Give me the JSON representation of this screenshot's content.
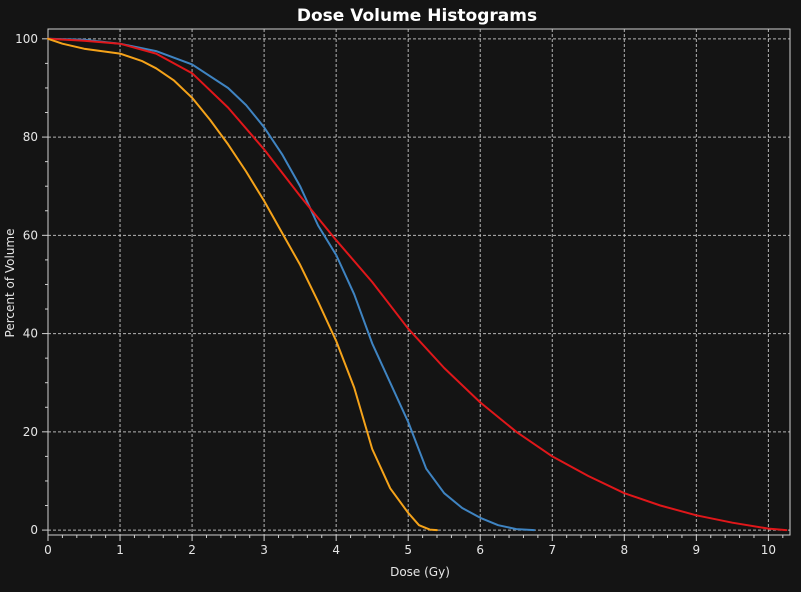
{
  "chart_data": {
    "type": "line",
    "title": "Dose Volume Histograms",
    "xlabel": "Dose (Gy)",
    "ylabel": "Percent of Volume",
    "xlim": [
      0,
      10.3
    ],
    "ylim": [
      -1,
      102
    ],
    "xticks": [
      0,
      1,
      2,
      3,
      4,
      5,
      6,
      7,
      8,
      9,
      10
    ],
    "yticks": [
      0,
      20,
      40,
      60,
      80,
      100
    ],
    "grid": true,
    "series": [
      {
        "color": "#3f84c2",
        "x": [
          0,
          0.5,
          1,
          1.5,
          2,
          2.5,
          2.75,
          3,
          3.25,
          3.5,
          3.75,
          4,
          4.25,
          4.5,
          4.75,
          5,
          5.25,
          5.5,
          5.75,
          6,
          6.25,
          6.5,
          6.75
        ],
        "y": [
          100,
          99.8,
          99,
          97.5,
          94.8,
          90,
          86.5,
          82,
          76.5,
          70,
          62,
          56,
          48,
          38,
          30,
          22,
          12.5,
          7.5,
          4.5,
          2.5,
          1,
          0.2,
          0
        ]
      },
      {
        "color": "#e0171a",
        "x": [
          0,
          0.5,
          1,
          1.5,
          2,
          2.5,
          3,
          3.5,
          4,
          4.5,
          5,
          5.5,
          6,
          6.5,
          7,
          7.5,
          8,
          8.5,
          9,
          9.5,
          10,
          10.25
        ],
        "y": [
          100,
          99.6,
          99,
          97,
          93,
          86,
          77.5,
          68,
          59,
          50.5,
          41,
          33,
          26,
          20,
          15,
          11,
          7.5,
          5,
          3,
          1.5,
          0.3,
          0
        ]
      },
      {
        "color": "#f5a31a",
        "x": [
          0,
          0.2,
          0.5,
          1,
          1.3,
          1.5,
          1.75,
          2,
          2.25,
          2.5,
          2.75,
          3,
          3.25,
          3.5,
          3.75,
          4,
          4.25,
          4.5,
          4.75,
          5,
          5.15,
          5.3,
          5.4
        ],
        "y": [
          100,
          99,
          98,
          97,
          95.5,
          94,
          91.5,
          88,
          83.5,
          78.5,
          73,
          67,
          60.5,
          54,
          46.5,
          38.5,
          29,
          16.5,
          8.5,
          3.5,
          1,
          0.1,
          0
        ]
      }
    ]
  }
}
